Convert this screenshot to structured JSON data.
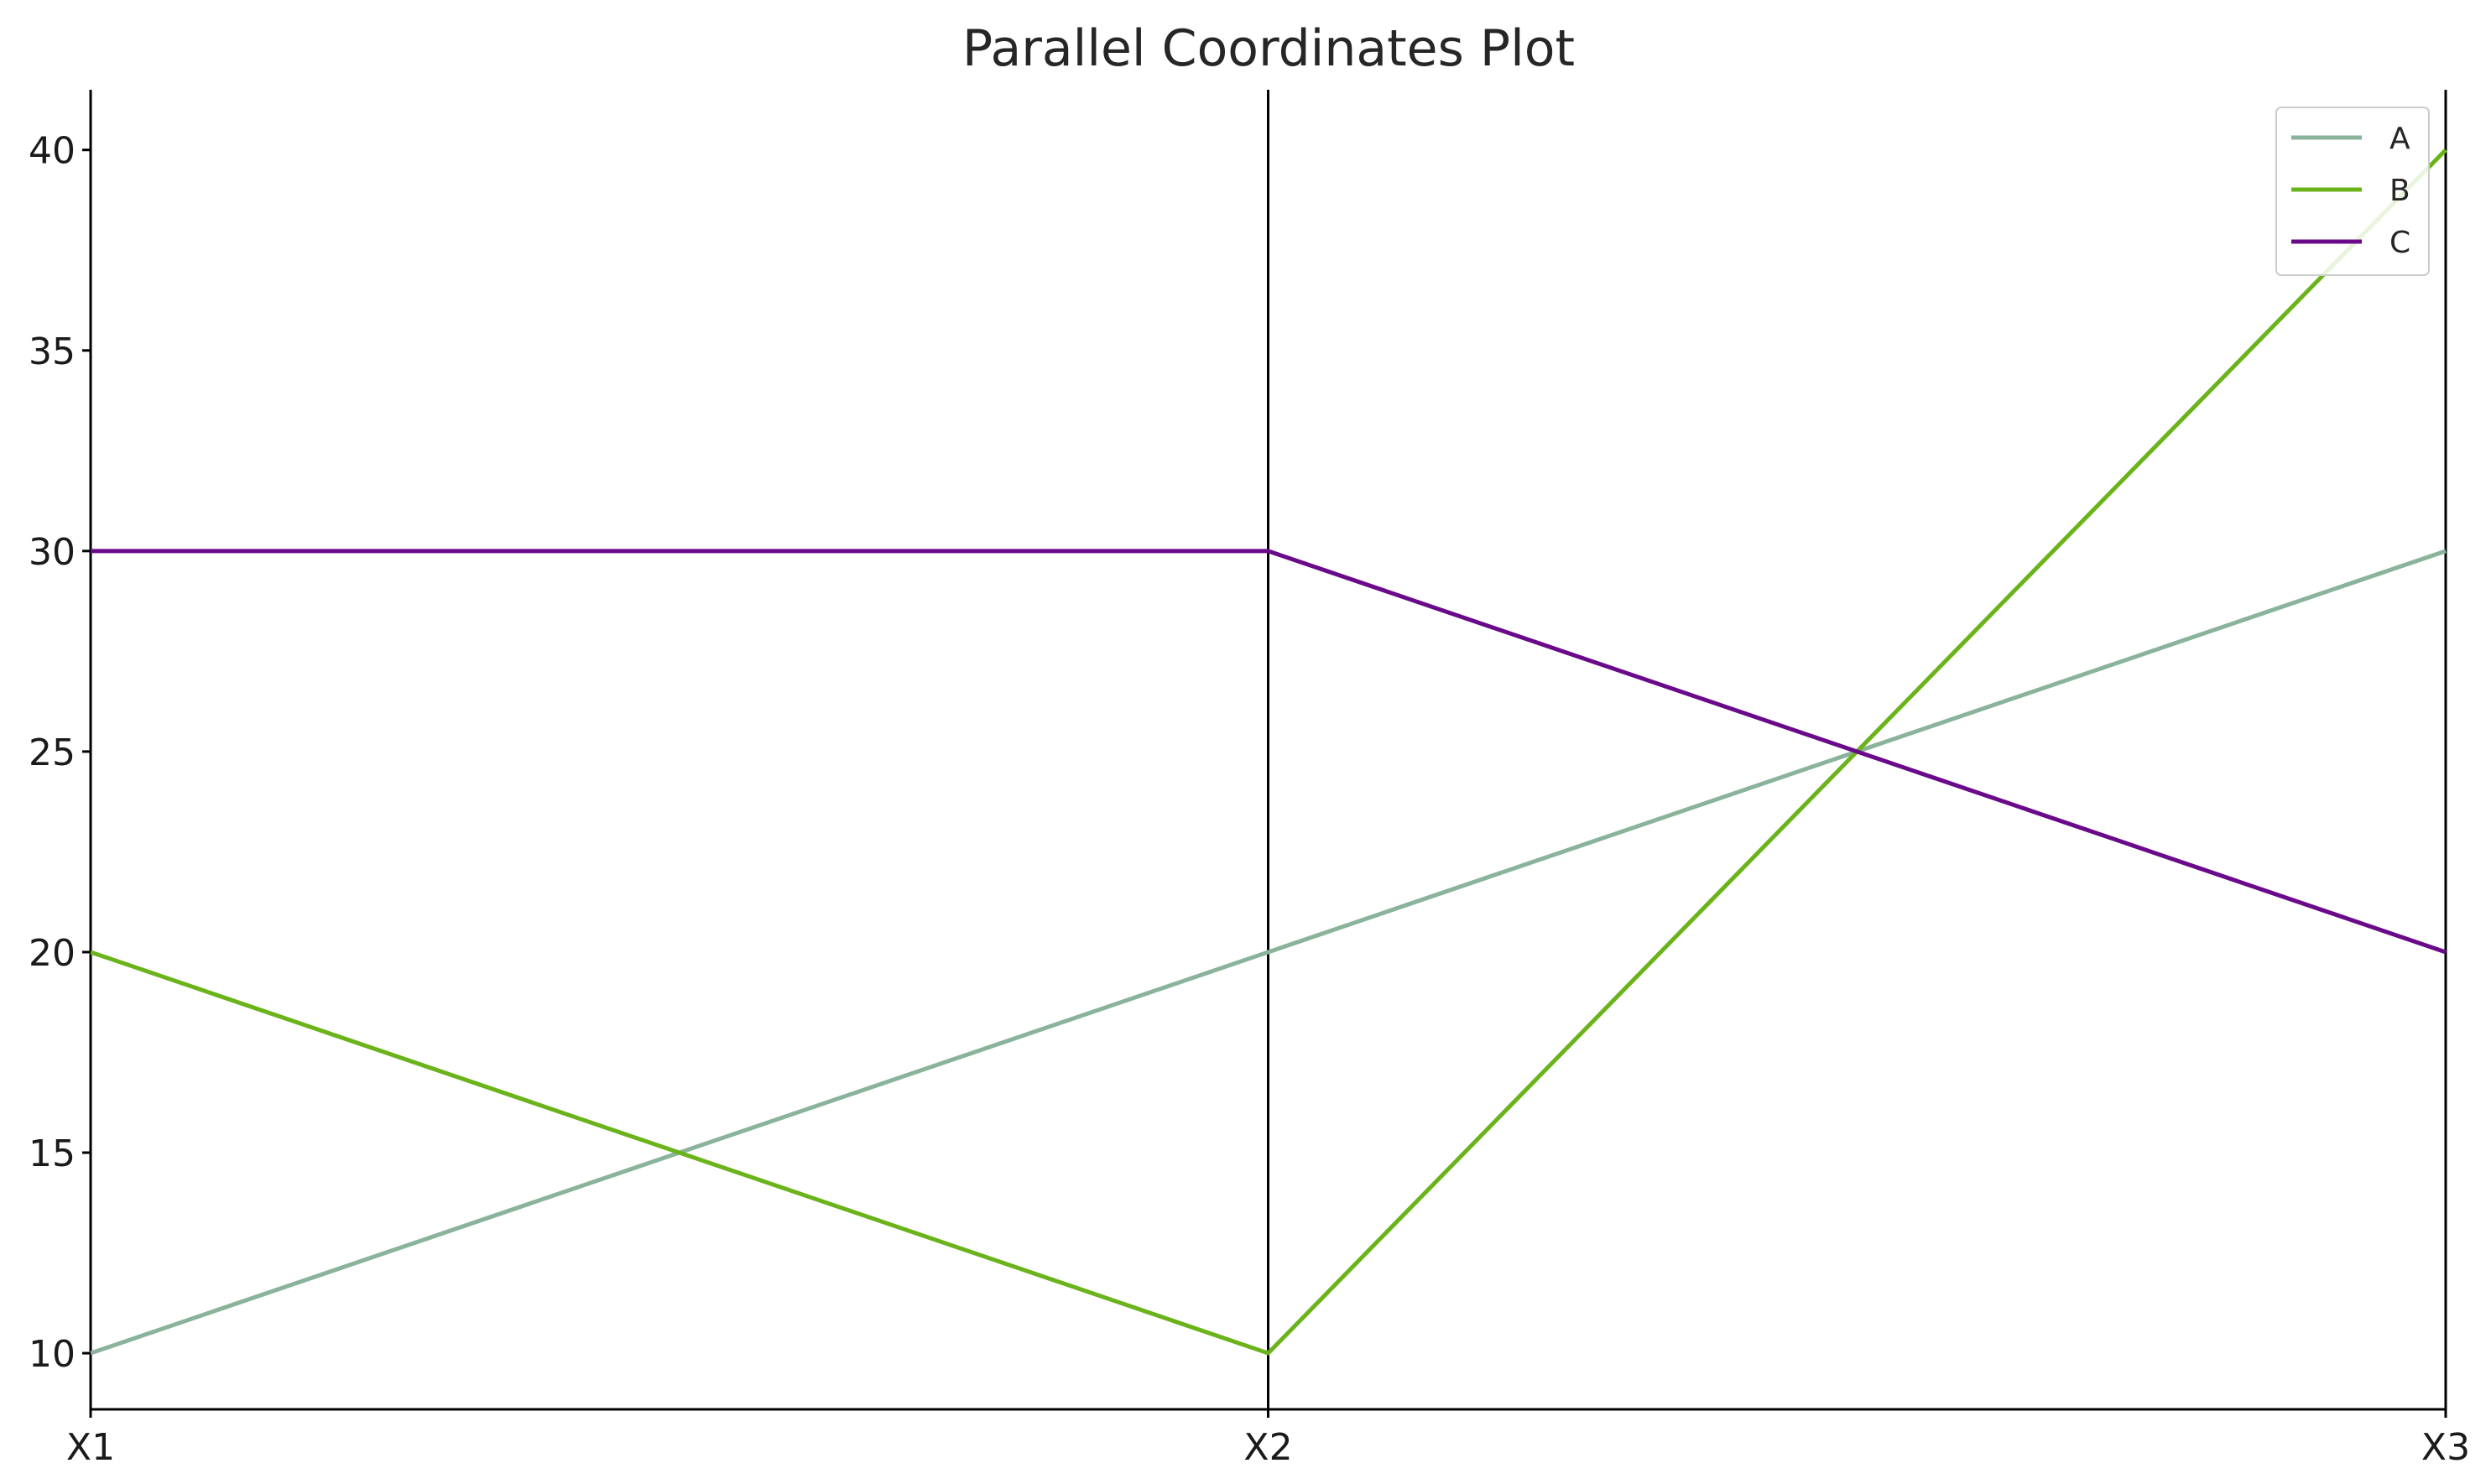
{
  "chart_data": {
    "type": "line",
    "title": "Parallel Coordinates Plot",
    "xlabel": "",
    "ylabel": "",
    "categories": [
      "X1",
      "X2",
      "X3"
    ],
    "ylim": [
      8.6,
      41.5
    ],
    "yticks": [
      10,
      15,
      20,
      25,
      30,
      35,
      40
    ],
    "grid": false,
    "legend": "top-right",
    "series": [
      {
        "name": "A",
        "color": "#8ab39b",
        "values": [
          10,
          20,
          30
        ]
      },
      {
        "name": "B",
        "color": "#6ab31a",
        "values": [
          20,
          10,
          40
        ]
      },
      {
        "name": "C",
        "color": "#6a0a8a",
        "values": [
          30,
          30,
          20
        ]
      }
    ]
  }
}
